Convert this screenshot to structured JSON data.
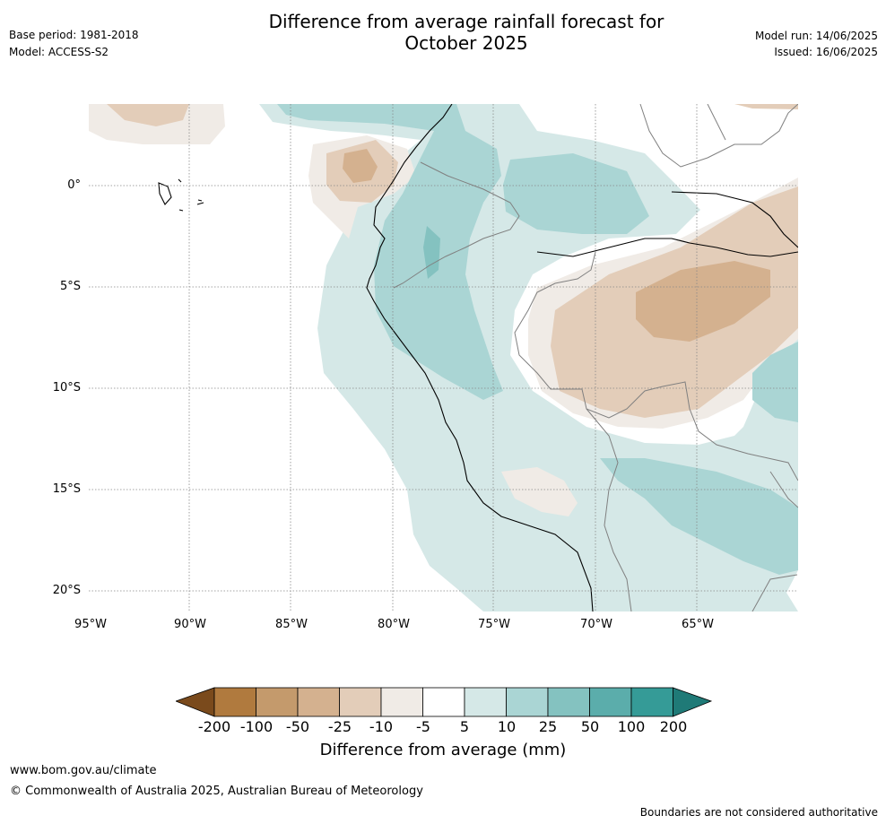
{
  "header": {
    "base_period": "Base period: 1981-2018",
    "model": "Model: ACCESS-S2",
    "title_line1": "Difference from average rainfall forecast for",
    "title_line2": "October 2025",
    "model_run": "Model run: 14/06/2025",
    "issued": "Issued: 16/06/2025"
  },
  "map": {
    "lat_labels": [
      "0°",
      "5°S",
      "10°S",
      "15°S",
      "20°S"
    ],
    "lon_labels": [
      "95°W",
      "90°W",
      "85°W",
      "80°W",
      "75°W",
      "70°W",
      "65°W"
    ],
    "grid": "dotted"
  },
  "legend": {
    "title": "Difference from average (mm)",
    "ticks": [
      "-200",
      "-100",
      "-50",
      "-25",
      "-10",
      "-5",
      "5",
      "10",
      "25",
      "50",
      "100",
      "200"
    ],
    "colors": [
      "#7a4a1c",
      "#b07a3e",
      "#c49a6c",
      "#d4b18f",
      "#e3cdb9",
      "#f0ebe6",
      "#ffffff",
      "#d5e8e7",
      "#aad5d4",
      "#84c2c0",
      "#5badab",
      "#359b97",
      "#1f7a77"
    ]
  },
  "footer": {
    "url": "www.bom.gov.au/climate",
    "copyright": "© Commonwealth of Australia 2025, Australian Bureau of Meteorology",
    "disclaimer": "Boundaries are not considered authoritative"
  }
}
